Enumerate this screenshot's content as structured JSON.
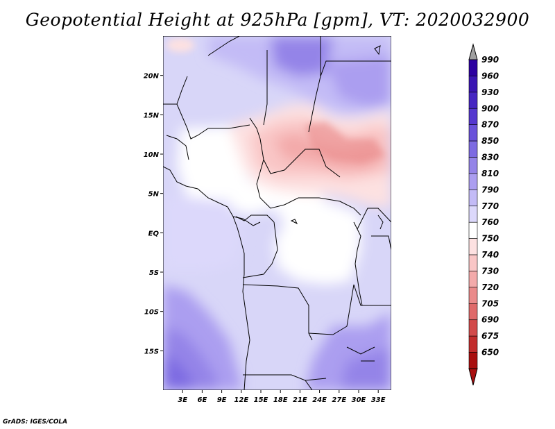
{
  "title": "Geopotential Height at 925hPa [gpm], VT: 2020032900",
  "credit": "GrADS: IGES/COLA",
  "map": {
    "projection": "latlon",
    "lon_range": [
      0,
      35
    ],
    "lat_range": [
      -20,
      25
    ],
    "lon_ticks": [
      "3E",
      "6E",
      "9E",
      "12E",
      "15E",
      "18E",
      "21E",
      "24E",
      "27E",
      "30E",
      "33E"
    ],
    "lat_ticks": [
      "20N",
      "15N",
      "10N",
      "5N",
      "EQ",
      "5S",
      "10S",
      "15S"
    ],
    "field": "geopotential height 925hPa",
    "features": [
      "high (blue) over Sahara in north",
      "low (red) band 8N-15N across Chad/Sudan/CAR",
      "near 770 (white) over Congo basin and West Africa coast",
      "high (blue) over Atlantic south-west and southern Africa"
    ]
  },
  "colorbar": {
    "levels": [
      "990",
      "960",
      "930",
      "900",
      "870",
      "850",
      "830",
      "810",
      "790",
      "770",
      "760",
      "750",
      "740",
      "730",
      "720",
      "705",
      "690",
      "675",
      "650"
    ],
    "colors": [
      "#2c00a0",
      "#3a15b3",
      "#4626c2",
      "#5538cf",
      "#6a52da",
      "#7d6be2",
      "#9484e8",
      "#ab9ef0",
      "#c3bbf6",
      "#dcd8fb",
      "#ffffff",
      "#fde1e1",
      "#f9c6c6",
      "#f3aaaa",
      "#ea8a8a",
      "#df6a6a",
      "#d24a4a",
      "#c22c2c",
      "#a90f0f"
    ]
  }
}
